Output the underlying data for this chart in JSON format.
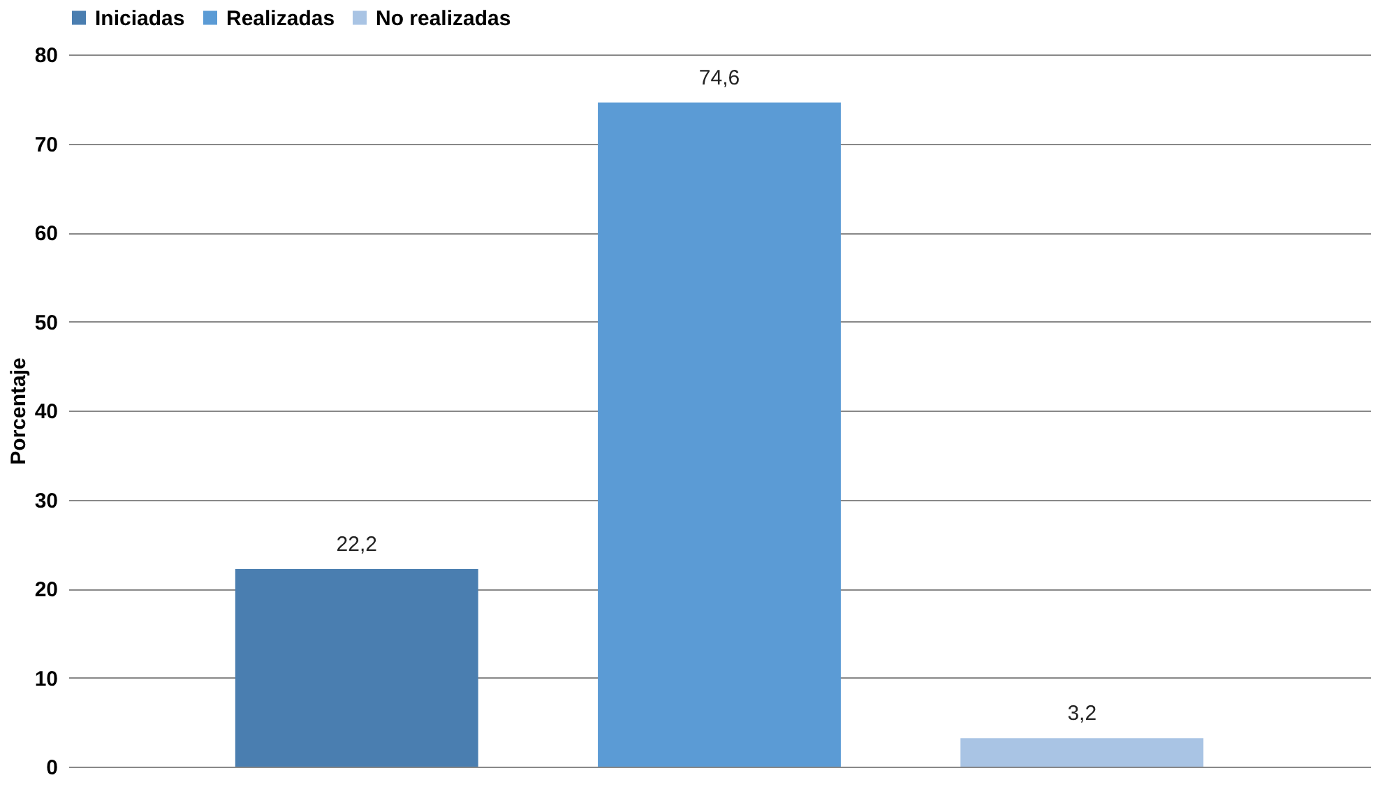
{
  "chart_data": {
    "type": "bar",
    "categories": [
      null
    ],
    "ylabel": "Porcentaje",
    "series": [
      {
        "name": "Iniciadas",
        "color": "#4a7eb0",
        "values": [
          22.2
        ],
        "value_labels": [
          "22,2"
        ]
      },
      {
        "name": "Realizadas",
        "color": "#5b9bd5",
        "values": [
          74.6
        ],
        "value_labels": [
          "74,6"
        ]
      },
      {
        "name": "No realizadas",
        "color": "#a9c4e4",
        "values": [
          3.2
        ],
        "value_labels": [
          "3,2"
        ]
      }
    ],
    "ylim": [
      0,
      80
    ],
    "yticks": [
      0,
      10,
      20,
      30,
      40,
      50,
      60,
      70,
      80
    ],
    "grid": "y",
    "legend": "top"
  }
}
